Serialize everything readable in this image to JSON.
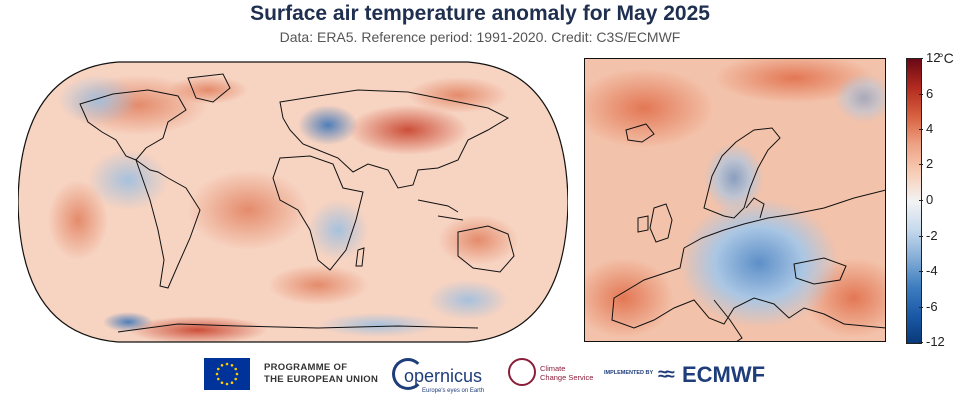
{
  "header": {
    "title": "Surface air temperature anomaly for May 2025",
    "subtitle": "Data: ERA5.  Reference period: 1991-2020.  Credit: C3S/ECMWF"
  },
  "colorbar": {
    "unit": "°C",
    "ticks": [
      "12",
      "6",
      "4",
      "2",
      "0",
      "-2",
      "-4",
      "-6",
      "-12"
    ],
    "colors": [
      "#083a7a",
      "#1c5aa8",
      "#3f7fc0",
      "#86aed7",
      "#c7daed",
      "#f3f3f3",
      "#f8cdb6",
      "#eea184",
      "#d7603f",
      "#b22a20",
      "#6a0814"
    ]
  },
  "maps": {
    "world": {
      "projection": "Robinson",
      "background": "#f7d3c1"
    },
    "europe": {
      "background": "#f3c2aa"
    }
  },
  "logos": {
    "eu": {
      "line1": "PROGRAMME OF",
      "line2": "THE EUROPEAN UNION"
    },
    "copernicus": {
      "text": "opernicus",
      "tagline": "Europe's eyes on Earth"
    },
    "c3s": {
      "line1": "Climate",
      "line2": "Change Service"
    },
    "ecmwf": {
      "implemented": "IMPLEMENTED BY",
      "name": "ECMWF"
    }
  }
}
